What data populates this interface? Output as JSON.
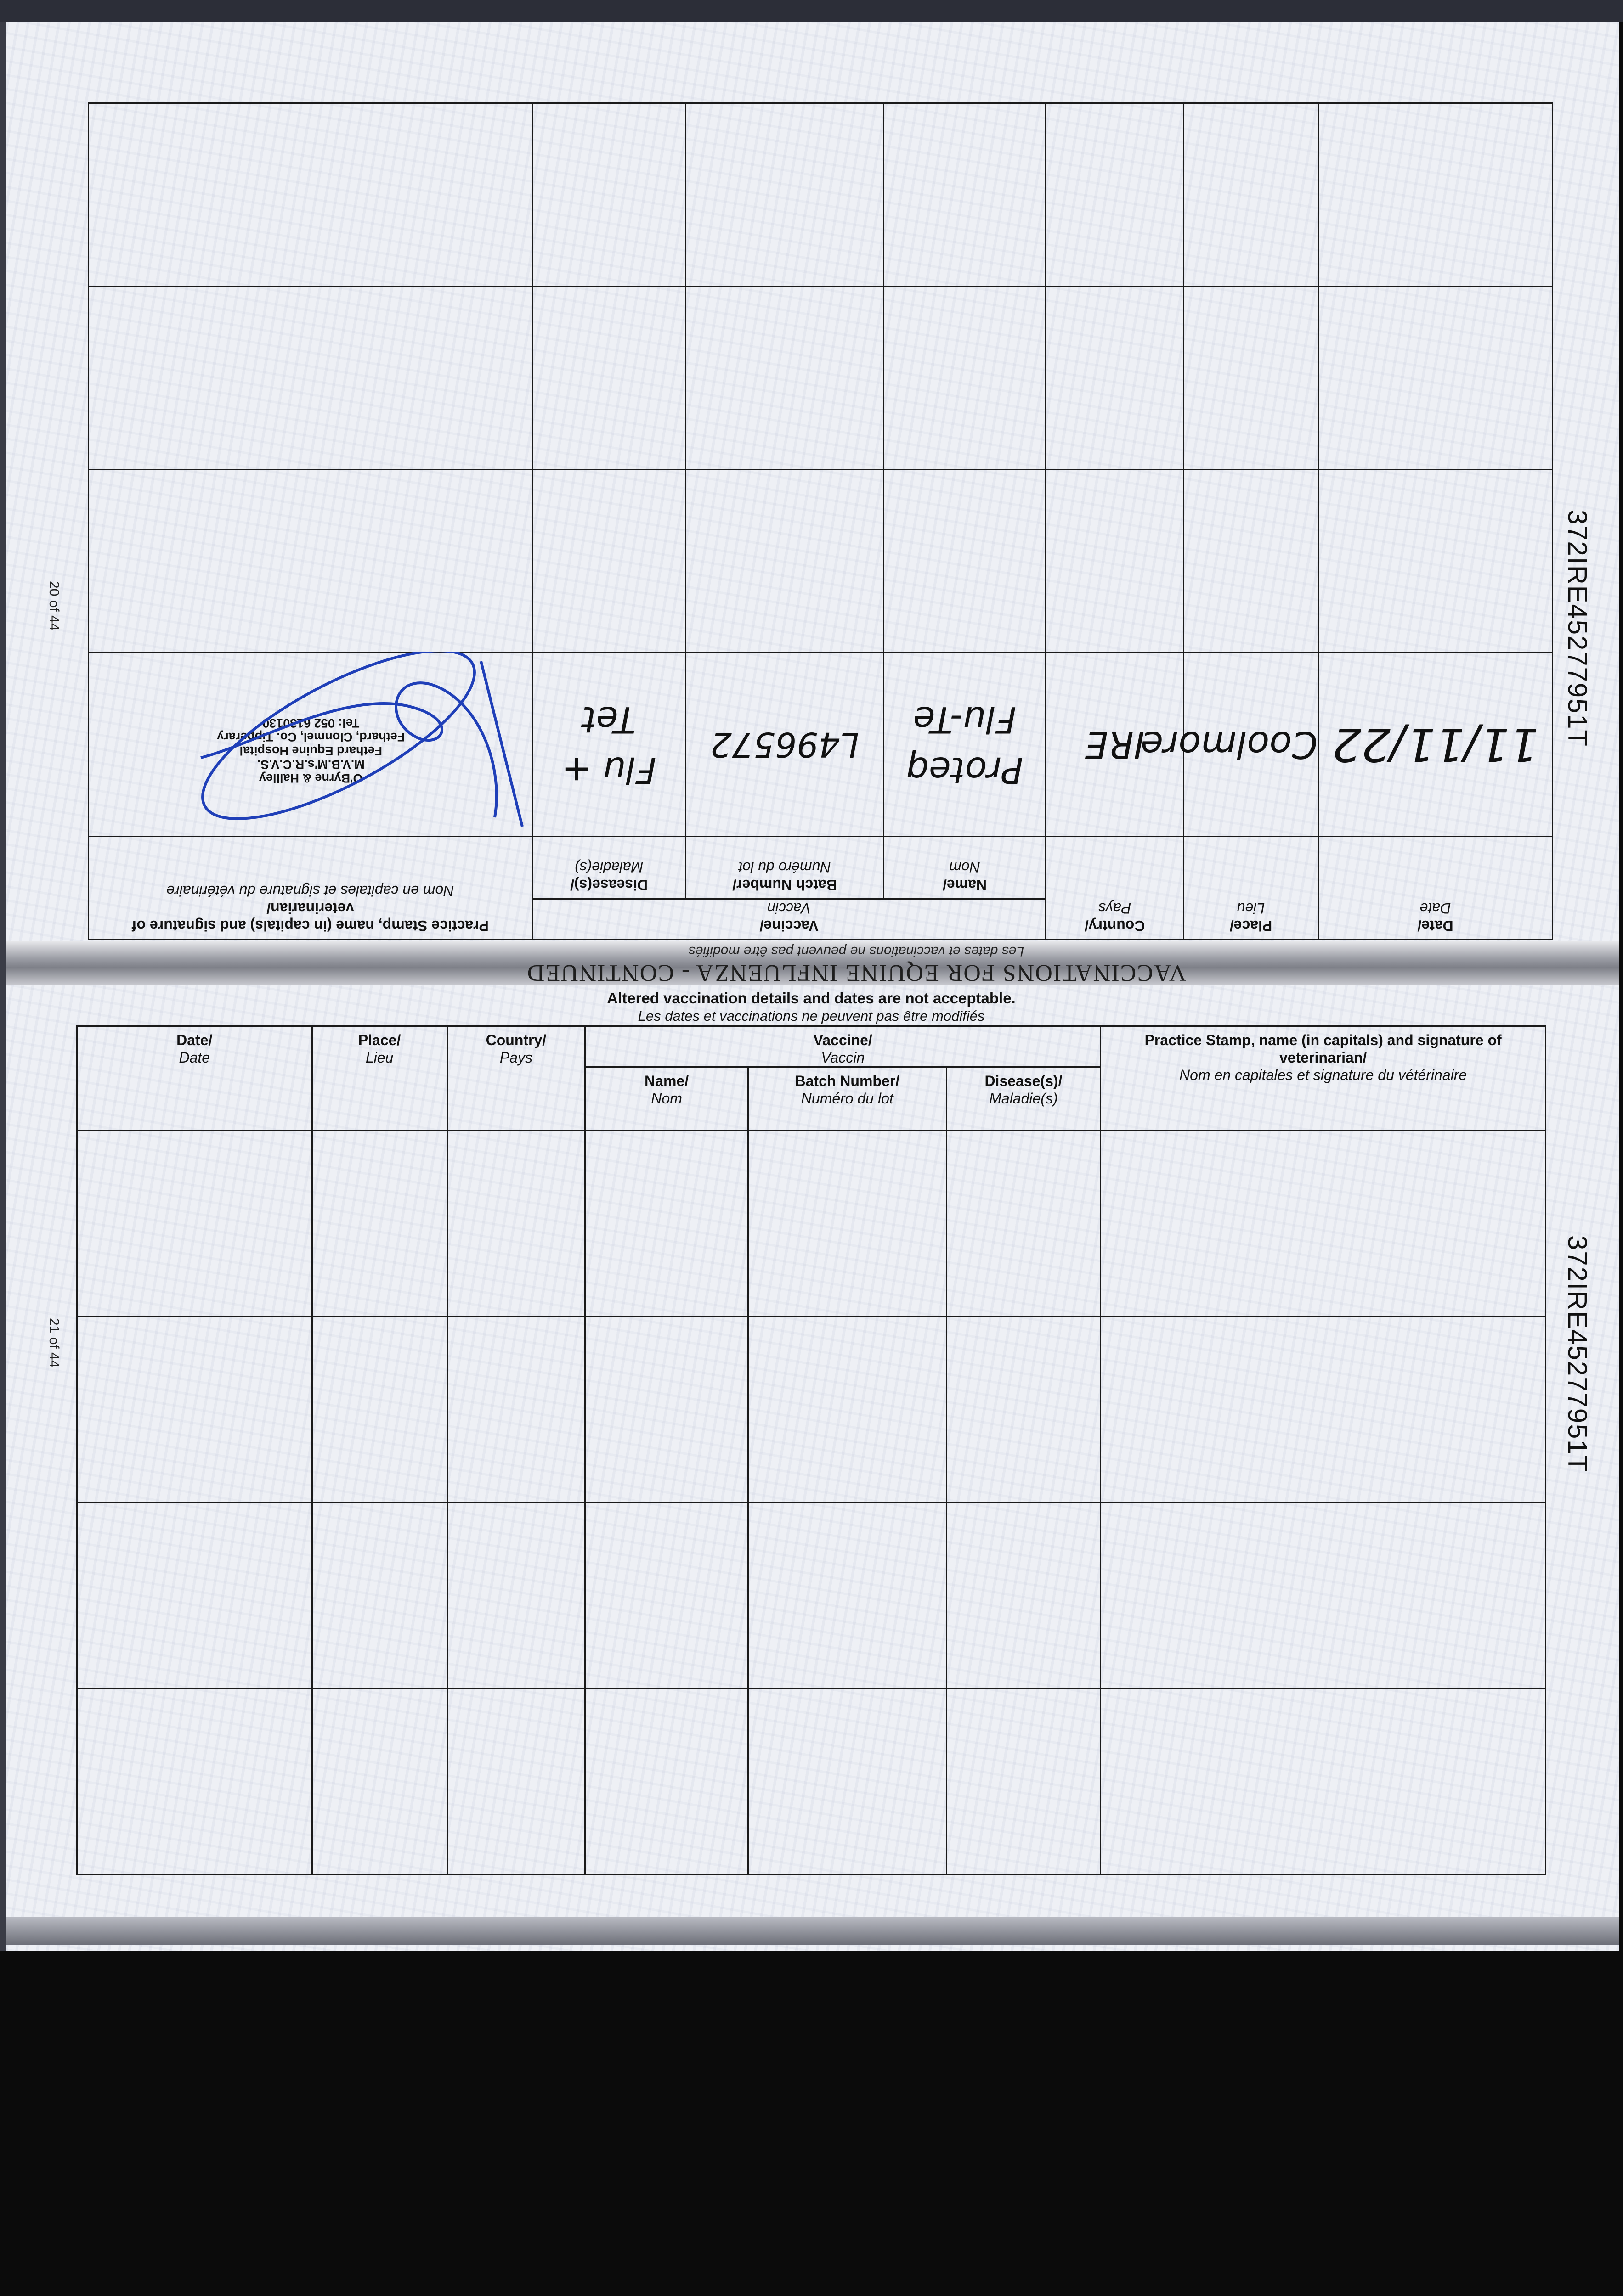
{
  "document": {
    "title": "VACCINATIONS FOR EQUINE INFLUENZA - CONTINUED",
    "notice_en": "Altered vaccination details and dates are not acceptable.",
    "notice_fr": "Les dates et vaccinations ne peuvent pas être modifiés",
    "horse_id": "372IRE45277951T"
  },
  "headers": {
    "date_en": "Date/",
    "date_fr": "Date",
    "place_en": "Place/",
    "place_fr": "Lieu",
    "country_en": "Country/",
    "country_fr": "Pays",
    "vaccine_en": "Vaccine/",
    "vaccine_fr": "Vaccin",
    "name_en": "Name/",
    "name_fr": "Nom",
    "batch_en": "Batch Number/",
    "batch_fr": "Numéro du lot",
    "disease_en": "Disease(s)/",
    "disease_fr": "Maladie(s)",
    "stamp_en": "Practice Stamp, name (in capitals) and signature of veterinarian/",
    "stamp_fr": "Nom en capitales et signature du vétérinaire"
  },
  "pages": {
    "upper": {
      "page_number": "20 of 44",
      "entries": [
        {
          "date": "11/11/22",
          "place": "Coolmore",
          "country": "IRE",
          "name": "Proteq Flu-Te",
          "batch": "L496572",
          "disease": "Flu + Tet",
          "stamp": [
            "O'Byrne & Hallley",
            "M.V.B.M's.R.C.V.S.",
            "Fethard Equine Hospital",
            "Fethard, Clonmel, Co. Tipperary",
            "Tel: 052 6130130"
          ]
        }
      ]
    },
    "lower": {
      "page_number": "21 of 44",
      "entries": []
    }
  },
  "colors": {
    "ink": "#1f3fb8",
    "rule": "#1a1a1a",
    "paper": "#eef0f5"
  }
}
